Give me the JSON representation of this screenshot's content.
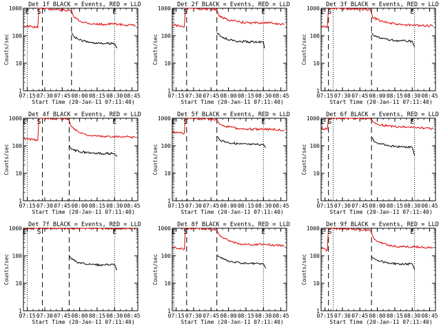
{
  "figure": {
    "xlabel": "Start Time (20-Jan-11 07:11:40)",
    "ylabel": "Counts/sec",
    "yticks": [
      {
        "label": "1",
        "value": 1
      },
      {
        "label": "10",
        "value": 10
      },
      {
        "label": "100",
        "value": 100
      },
      {
        "label": "1000",
        "value": 1000
      }
    ],
    "xticks": [
      "07:15",
      "07:30",
      "07:45",
      "08:00",
      "08:15",
      "08:30",
      "08:45"
    ],
    "colors": {
      "events": "#000000",
      "lld": "#dd0000",
      "axes": "#000000",
      "background": "#ffffff"
    }
  },
  "chart_data": [
    {
      "type": "line",
      "title": "Det 1f BLACK = Events, RED = LLD",
      "xlim": [
        "07:11:40",
        "08:50"
      ],
      "ylim": [
        1,
        1000
      ],
      "yscale": "log",
      "markers": [
        {
          "label": "E",
          "time": "07:15"
        },
        {
          "label": "S",
          "time": "07:25"
        },
        {
          "label": "E",
          "time": "08:30"
        }
      ],
      "dashed_lines": [
        "07:28",
        "07:53"
      ],
      "dotted_lines": [
        "07:15",
        "08:30"
      ],
      "series": [
        {
          "name": "LLD",
          "points": [
            [
              "07:12",
              230
            ],
            [
              "07:24",
              200
            ],
            [
              "07:25",
              1000
            ],
            [
              "07:28",
              1000
            ],
            [
              "07:53",
              800
            ],
            [
              "07:55",
              480
            ],
            [
              "08:00",
              340
            ],
            [
              "08:10",
              270
            ],
            [
              "08:20",
              260
            ],
            [
              "08:30",
              270
            ],
            [
              "08:40",
              245
            ],
            [
              "08:48",
              235
            ]
          ]
        },
        {
          "name": "Events",
          "points": [
            [
              "07:53",
              130
            ],
            [
              "07:55",
              95
            ],
            [
              "08:00",
              70
            ],
            [
              "08:10",
              56
            ],
            [
              "08:20",
              52
            ],
            [
              "08:30",
              52
            ],
            [
              "08:32",
              35
            ]
          ]
        }
      ]
    },
    {
      "type": "line",
      "title": "Det 2f BLACK = Events, RED = LLD",
      "xlim": [
        "07:11:40",
        "08:50"
      ],
      "ylim": [
        1,
        1000
      ],
      "yscale": "log",
      "markers": [
        {
          "label": "E",
          "time": "07:13"
        },
        {
          "label": "S",
          "time": "07:23"
        },
        {
          "label": "E",
          "time": "08:30"
        }
      ],
      "dashed_lines": [
        "07:24",
        "07:50"
      ],
      "dotted_lines": [
        "07:13",
        "08:30"
      ],
      "series": [
        {
          "name": "LLD",
          "points": [
            [
              "07:12",
              250
            ],
            [
              "07:22",
              210
            ],
            [
              "07:23",
              1000
            ],
            [
              "07:26",
              1000
            ],
            [
              "07:50",
              900
            ],
            [
              "07:52",
              500
            ],
            [
              "08:00",
              380
            ],
            [
              "08:10",
              310
            ],
            [
              "08:20",
              290
            ],
            [
              "08:30",
              300
            ],
            [
              "08:40",
              280
            ],
            [
              "08:48",
              260
            ]
          ]
        },
        {
          "name": "Events",
          "points": [
            [
              "07:50",
              130
            ],
            [
              "07:53",
              95
            ],
            [
              "08:00",
              72
            ],
            [
              "08:10",
              62
            ],
            [
              "08:20",
              60
            ],
            [
              "08:30",
              60
            ],
            [
              "08:31",
              35
            ]
          ]
        }
      ]
    },
    {
      "type": "line",
      "title": "Det 3f BLACK = Events, RED = LLD",
      "xlim": [
        "07:11:40",
        "08:50"
      ],
      "ylim": [
        1,
        1000
      ],
      "yscale": "log",
      "markers": [
        {
          "label": "E",
          "time": "07:13"
        },
        {
          "label": "S",
          "time": "07:19"
        },
        {
          "label": "E",
          "time": "08:30"
        }
      ],
      "dashed_lines": [
        "07:18",
        "07:55"
      ],
      "dotted_lines": [
        "07:22",
        "08:32"
      ],
      "series": [
        {
          "name": "LLD",
          "points": [
            [
              "07:12",
              230
            ],
            [
              "07:17",
              200
            ],
            [
              "07:18",
              1000
            ],
            [
              "07:21",
              1000
            ],
            [
              "07:54",
              900
            ],
            [
              "07:56",
              480
            ],
            [
              "08:00",
              390
            ],
            [
              "08:10",
              290
            ],
            [
              "08:20",
              250
            ],
            [
              "08:30",
              240
            ],
            [
              "08:40",
              235
            ],
            [
              "08:48",
              225
            ]
          ]
        },
        {
          "name": "Events",
          "points": [
            [
              "07:55",
              130
            ],
            [
              "07:57",
              100
            ],
            [
              "08:00",
              90
            ],
            [
              "08:10",
              70
            ],
            [
              "08:20",
              65
            ],
            [
              "08:30",
              63
            ],
            [
              "08:32",
              40
            ]
          ]
        }
      ]
    },
    {
      "type": "line",
      "title": "Det 4f BLACK = Events, RED = LLD",
      "xlim": [
        "07:11:40",
        "08:50"
      ],
      "ylim": [
        1,
        1000
      ],
      "yscale": "log",
      "markers": [
        {
          "label": "E",
          "time": "07:13"
        },
        {
          "label": "S",
          "time": "07:25"
        },
        {
          "label": "E",
          "time": "08:30"
        }
      ],
      "dashed_lines": [
        "07:28",
        "07:51"
      ],
      "dotted_lines": [
        "07:15",
        "08:30"
      ],
      "series": [
        {
          "name": "LLD",
          "points": [
            [
              "07:12",
              180
            ],
            [
              "07:24",
              160
            ],
            [
              "07:25",
              1000
            ],
            [
              "07:28",
              1000
            ],
            [
              "07:50",
              950
            ],
            [
              "07:53",
              500
            ],
            [
              "08:00",
              300
            ],
            [
              "08:10",
              230
            ],
            [
              "08:20",
              215
            ],
            [
              "08:30",
              220
            ],
            [
              "08:40",
              215
            ],
            [
              "08:48",
              200
            ]
          ]
        },
        {
          "name": "Events",
          "points": [
            [
              "07:51",
              100
            ],
            [
              "07:53",
              75
            ],
            [
              "08:00",
              60
            ],
            [
              "08:10",
              55
            ],
            [
              "08:20",
              52
            ],
            [
              "08:30",
              52
            ],
            [
              "08:32",
              40
            ]
          ]
        }
      ]
    },
    {
      "type": "line",
      "title": "Det 5f BLACK = Events, RED = LLD",
      "xlim": [
        "07:11:40",
        "08:50"
      ],
      "ylim": [
        1,
        1000
      ],
      "yscale": "log",
      "markers": [
        {
          "label": "E",
          "time": "07:13"
        },
        {
          "label": "S",
          "time": "07:23"
        },
        {
          "label": "E",
          "time": "08:30"
        }
      ],
      "dashed_lines": [
        "07:24",
        "07:50"
      ],
      "dotted_lines": [
        "07:13",
        "08:30"
      ],
      "series": [
        {
          "name": "LLD",
          "points": [
            [
              "07:12",
              320
            ],
            [
              "07:22",
              280
            ],
            [
              "07:23",
              1000
            ],
            [
              "07:26",
              1000
            ],
            [
              "07:50",
              900
            ],
            [
              "07:53",
              600
            ],
            [
              "08:00",
              480
            ],
            [
              "08:10",
              420
            ],
            [
              "08:20",
              400
            ],
            [
              "08:30",
              410
            ],
            [
              "08:40",
              390
            ],
            [
              "08:48",
              370
            ]
          ]
        },
        {
          "name": "Events",
          "points": [
            [
              "07:50",
              220
            ],
            [
              "07:53",
              160
            ],
            [
              "08:00",
              130
            ],
            [
              "08:10",
              115
            ],
            [
              "08:20",
              110
            ],
            [
              "08:30",
              112
            ],
            [
              "08:32",
              85
            ]
          ]
        }
      ]
    },
    {
      "type": "line",
      "title": "Det 6f BLACK = Events, RED = LLD",
      "xlim": [
        "07:11:40",
        "08:50"
      ],
      "ylim": [
        1,
        1000
      ],
      "yscale": "log",
      "markers": [
        {
          "label": "E",
          "time": "07:13"
        },
        {
          "label": "S",
          "time": "07:19"
        },
        {
          "label": "E",
          "time": "08:30"
        }
      ],
      "dashed_lines": [
        "07:18",
        "07:55"
      ],
      "dotted_lines": [
        "07:22",
        "08:32"
      ],
      "series": [
        {
          "name": "LLD",
          "points": [
            [
              "07:12",
              430
            ],
            [
              "07:17",
              400
            ],
            [
              "07:18",
              1000
            ],
            [
              "07:21",
              1000
            ],
            [
              "07:54",
              1000
            ],
            [
              "07:57",
              700
            ],
            [
              "08:00",
              600
            ],
            [
              "08:10",
              520
            ],
            [
              "08:20",
              480
            ],
            [
              "08:30",
              470
            ],
            [
              "08:40",
              440
            ],
            [
              "08:48",
              420
            ]
          ]
        },
        {
          "name": "Events",
          "points": [
            [
              "07:55",
              200
            ],
            [
              "07:58",
              140
            ],
            [
              "08:00",
              125
            ],
            [
              "08:10",
              100
            ],
            [
              "08:20",
              90
            ],
            [
              "08:30",
              88
            ],
            [
              "08:32",
              45
            ]
          ]
        }
      ]
    },
    {
      "type": "line",
      "title": "Det 7f BLACK = Events, RED = LLD",
      "xlim": [
        "07:11:40",
        "08:50"
      ],
      "ylim": [
        1,
        1000
      ],
      "yscale": "log",
      "markers": [
        {
          "label": "E",
          "time": "07:13"
        },
        {
          "label": "S",
          "time": "07:25"
        },
        {
          "label": "E",
          "time": "08:30"
        }
      ],
      "dashed_lines": [
        "07:28",
        "07:51"
      ],
      "dotted_lines": [
        "07:15",
        "08:30"
      ],
      "series": [
        {
          "name": "LLD",
          "points": [
            [
              "07:12",
              1000
            ],
            [
              "08:48",
              1000
            ]
          ]
        },
        {
          "name": "Events",
          "points": [
            [
              "07:51",
              100
            ],
            [
              "07:53",
              75
            ],
            [
              "08:00",
              55
            ],
            [
              "08:10",
              48
            ],
            [
              "08:20",
              46
            ],
            [
              "08:30",
              48
            ],
            [
              "08:32",
              30
            ]
          ]
        }
      ]
    },
    {
      "type": "line",
      "title": "Det 8f BLACK = Events, RED = LLD",
      "xlim": [
        "07:11:40",
        "08:50"
      ],
      "ylim": [
        1,
        1000
      ],
      "yscale": "log",
      "markers": [
        {
          "label": "E",
          "time": "07:13"
        },
        {
          "label": "S",
          "time": "07:23"
        },
        {
          "label": "E",
          "time": "08:30"
        }
      ],
      "dashed_lines": [
        "07:24",
        "07:50"
      ],
      "dotted_lines": [
        "07:13",
        "08:30"
      ],
      "series": [
        {
          "name": "LLD",
          "points": [
            [
              "07:12",
              200
            ],
            [
              "07:22",
              170
            ],
            [
              "07:23",
              1000
            ],
            [
              "07:26",
              1000
            ],
            [
              "07:50",
              900
            ],
            [
              "07:53",
              500
            ],
            [
              "08:00",
              350
            ],
            [
              "08:10",
              270
            ],
            [
              "08:20",
              250
            ],
            [
              "08:30",
              260
            ],
            [
              "08:40",
              245
            ],
            [
              "08:48",
              230
            ]
          ]
        },
        {
          "name": "Events",
          "points": [
            [
              "07:50",
              110
            ],
            [
              "07:53",
              85
            ],
            [
              "08:00",
              65
            ],
            [
              "08:10",
              55
            ],
            [
              "08:20",
              52
            ],
            [
              "08:30",
              52
            ],
            [
              "08:32",
              35
            ]
          ]
        }
      ]
    },
    {
      "type": "line",
      "title": "Det 9f BLACK = Events, RED = LLD",
      "xlim": [
        "07:11:40",
        "08:50"
      ],
      "ylim": [
        1,
        1000
      ],
      "yscale": "log",
      "markers": [
        {
          "label": "E",
          "time": "07:13"
        },
        {
          "label": "S",
          "time": "07:19"
        },
        {
          "label": "E",
          "time": "08:30"
        }
      ],
      "dashed_lines": [
        "07:18",
        "07:55"
      ],
      "dotted_lines": [
        "07:22",
        "08:32"
      ],
      "series": [
        {
          "name": "LLD",
          "points": [
            [
              "07:12",
              190
            ],
            [
              "07:17",
              160
            ],
            [
              "07:18",
              1000
            ],
            [
              "07:21",
              1000
            ],
            [
              "07:54",
              850
            ],
            [
              "07:57",
              420
            ],
            [
              "08:00",
              330
            ],
            [
              "08:10",
              240
            ],
            [
              "08:20",
              210
            ],
            [
              "08:30",
              215
            ],
            [
              "08:40",
              205
            ],
            [
              "08:48",
              195
            ]
          ]
        },
        {
          "name": "Events",
          "points": [
            [
              "07:55",
              95
            ],
            [
              "07:58",
              75
            ],
            [
              "08:00",
              68
            ],
            [
              "08:10",
              55
            ],
            [
              "08:20",
              50
            ],
            [
              "08:30",
              50
            ],
            [
              "08:32",
              32
            ]
          ]
        }
      ]
    }
  ]
}
